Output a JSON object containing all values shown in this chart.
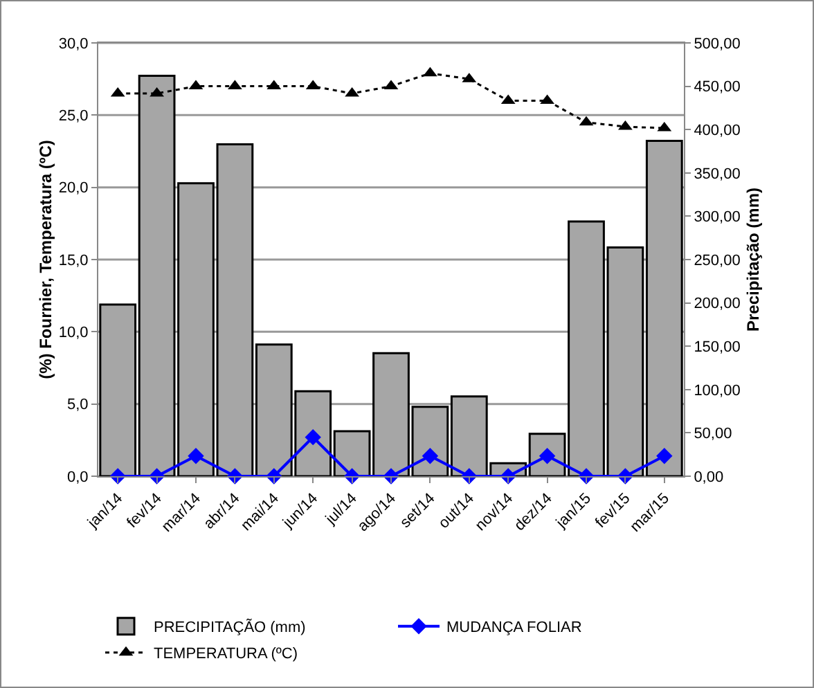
{
  "chart_data": {
    "type": "bar",
    "categories": [
      "jan/14",
      "fev/14",
      "mar/14",
      "abr/14",
      "mai/14",
      "jun/14",
      "jul/14",
      "ago/14",
      "set/14",
      "out/14",
      "nov/14",
      "dez/14",
      "jan/15",
      "fev/15",
      "mar/15"
    ],
    "series": [
      {
        "name": "PRECIPITAÇÃO (mm)",
        "axis": "y2",
        "color": "#a6a6a6",
        "values": [
          198,
          462,
          338,
          383,
          152,
          98,
          52,
          142,
          80,
          92,
          15,
          49,
          294,
          264,
          387
        ]
      },
      {
        "name": "MUDANÇA FOLIAR",
        "type": "line",
        "color": "#0000ff",
        "marker": "diamond",
        "line_style": "solid",
        "values": [
          0,
          0,
          1.4,
          0,
          0,
          2.7,
          0,
          0,
          1.4,
          0,
          0,
          1.4,
          0,
          0,
          1.4
        ]
      },
      {
        "name": "TEMPERATURA (ºC)",
        "type": "line",
        "color": "#000000",
        "marker": "triangle",
        "line_style": "dotted",
        "values": [
          26.5,
          26.5,
          27,
          27,
          27,
          27,
          26.5,
          27,
          27.9,
          27.5,
          26,
          26,
          24.5,
          24.2,
          24.1
        ]
      }
    ],
    "ylabel": "(%) Fournier, Temperatura (ºC)",
    "y2label": "Precipitação (mm)",
    "ylim": [
      0,
      30
    ],
    "yticks": [
      {
        "value": 0,
        "label": "0,0"
      },
      {
        "value": 5,
        "label": "5,0"
      },
      {
        "value": 10,
        "label": "10,0"
      },
      {
        "value": 15,
        "label": "15,0"
      },
      {
        "value": 20,
        "label": "20,0"
      },
      {
        "value": 25,
        "label": "25,0"
      },
      {
        "value": 30,
        "label": "30,0"
      }
    ],
    "y2lim": [
      0,
      500
    ],
    "y2ticks": [
      {
        "value": 0,
        "label": "0,00"
      },
      {
        "value": 50,
        "label": "50,00"
      },
      {
        "value": 100,
        "label": "100,00"
      },
      {
        "value": 150,
        "label": "150,00"
      },
      {
        "value": 200,
        "label": "200,00"
      },
      {
        "value": 250,
        "label": "250,00"
      },
      {
        "value": 300,
        "label": "300,00"
      },
      {
        "value": 350,
        "label": "350,00"
      },
      {
        "value": 400,
        "label": "400,00"
      },
      {
        "value": 450,
        "label": "450,00"
      },
      {
        "value": 500,
        "label": "500,00"
      }
    ],
    "grid": "y",
    "legend": "bottom"
  }
}
